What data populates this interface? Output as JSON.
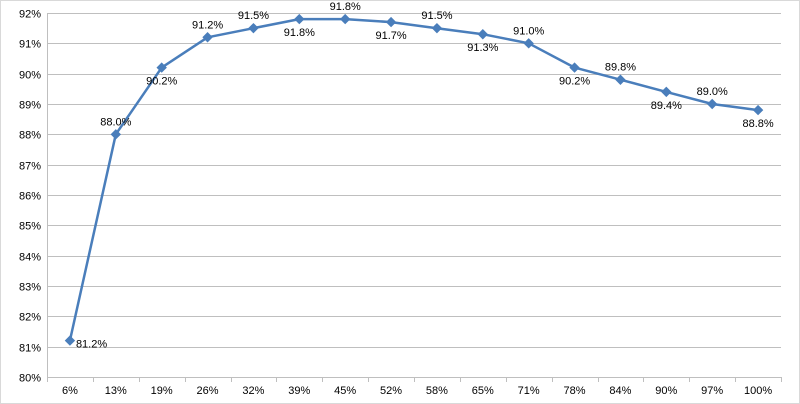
{
  "chart_data": {
    "type": "line",
    "title": "",
    "xlabel": "",
    "ylabel": "",
    "categories": [
      "6%",
      "13%",
      "19%",
      "26%",
      "32%",
      "39%",
      "45%",
      "52%",
      "58%",
      "65%",
      "71%",
      "78%",
      "84%",
      "90%",
      "97%",
      "100%"
    ],
    "y_ticks": [
      "80%",
      "81%",
      "82%",
      "83%",
      "84%",
      "85%",
      "86%",
      "87%",
      "88%",
      "89%",
      "90%",
      "91%",
      "92%"
    ],
    "ylim": [
      80,
      92
    ],
    "grid": true,
    "legend": "none",
    "series": [
      {
        "values": [
          81.2,
          88.0,
          90.2,
          91.2,
          91.5,
          91.8,
          91.8,
          91.7,
          91.5,
          91.3,
          91.0,
          90.2,
          89.8,
          89.4,
          89.0,
          88.8
        ],
        "labels": [
          "81.2%",
          "88.0%",
          "90.2%",
          "91.2%",
          "91.5%",
          "91.8%",
          "91.8%",
          "91.7%",
          "91.5%",
          "91.3%",
          "91.0%",
          "90.2%",
          "89.8%",
          "89.4%",
          "89.0%",
          "88.8%"
        ],
        "label_position": [
          "right",
          "above",
          "below",
          "above",
          "above",
          "below",
          "above",
          "below",
          "above",
          "below",
          "above",
          "below",
          "above",
          "below",
          "above",
          "below"
        ],
        "color": "#4a7ebb",
        "marker": "diamond"
      }
    ]
  }
}
